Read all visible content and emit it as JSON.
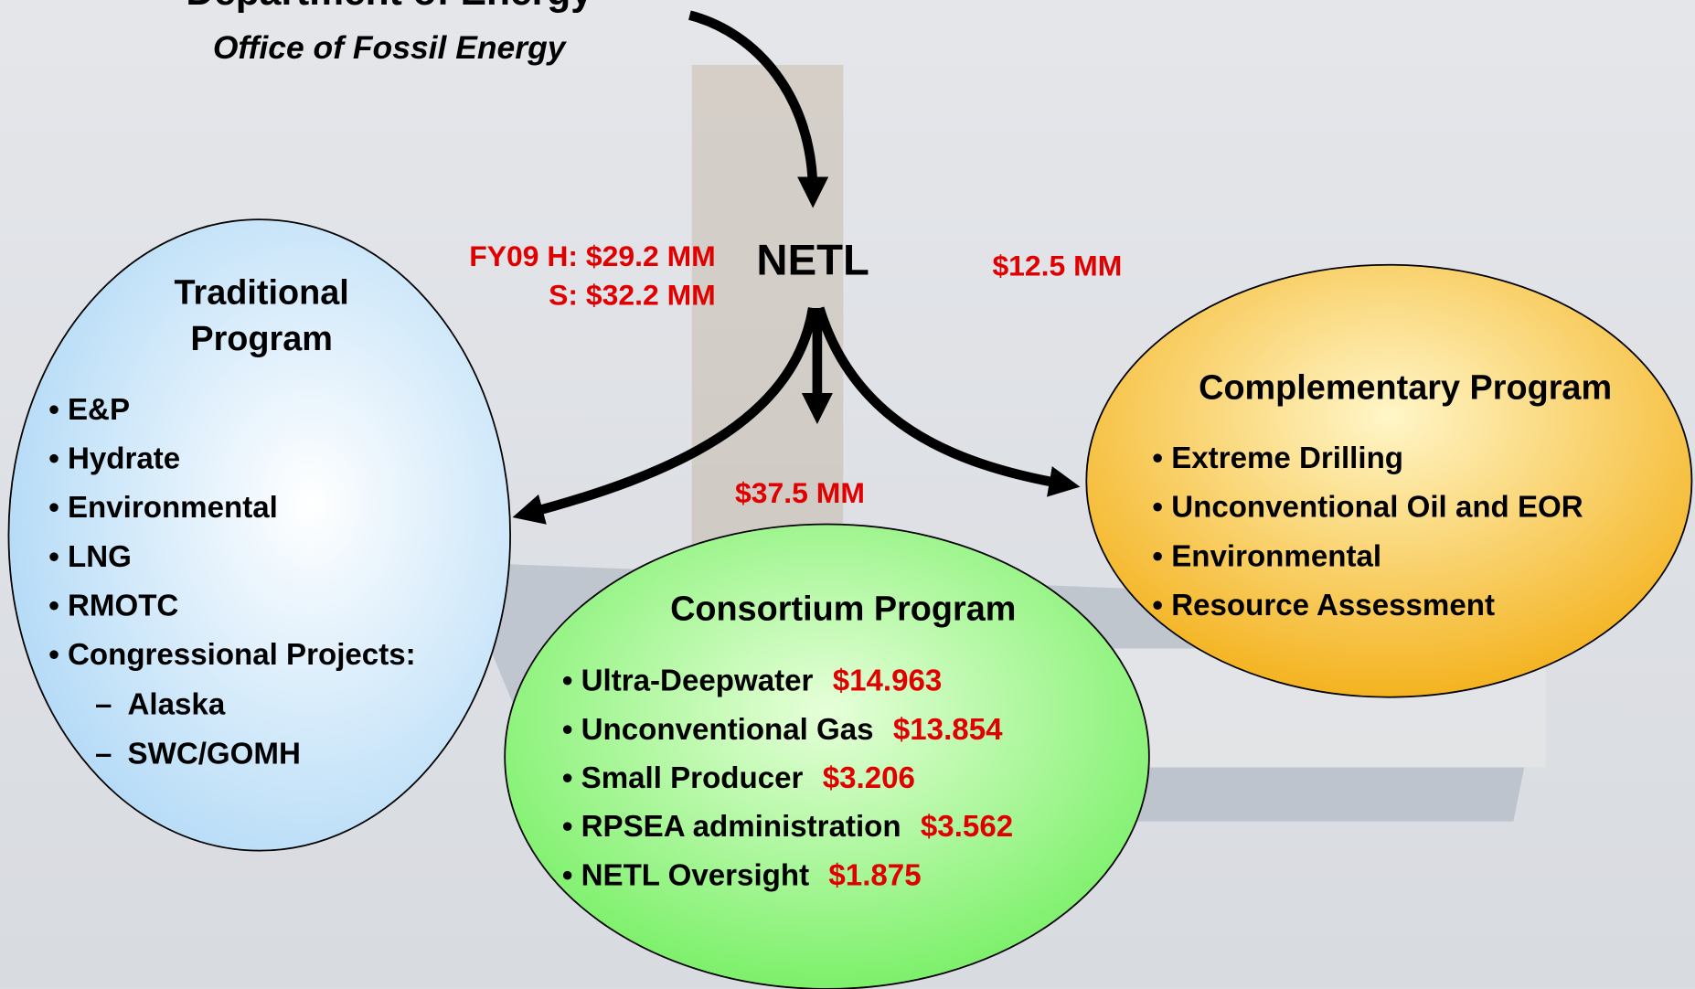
{
  "header": {
    "title": "Department of Energy",
    "subtitle": "Office of Fossil Energy"
  },
  "center": "NETL",
  "funding": {
    "netl_left": [
      "FY09 H: $29.2 MM",
      "S: $32.2 MM"
    ],
    "complementary": "$12.5 MM",
    "consortium": "$37.5 MM"
  },
  "traditional": {
    "title": [
      "Traditional",
      "Program"
    ],
    "items": [
      "• E&P",
      "• Hydrate",
      "• Environmental",
      "• LNG",
      "• RMOTC",
      "• Congressional Projects:"
    ],
    "subitems": [
      {
        "dash": "–",
        "text": "Alaska"
      },
      {
        "dash": "–",
        "text": "SWC/GOMH"
      }
    ]
  },
  "consortium": {
    "title": "Consortium Program",
    "items": [
      {
        "name": "• Ultra-Deepwater",
        "amount": "$14.963"
      },
      {
        "name": "• Unconventional Gas",
        "amount": "$13.854"
      },
      {
        "name": "• Small Producer",
        "amount": "$3.206"
      },
      {
        "name": "• RPSEA administration",
        "amount": "$3.562"
      },
      {
        "name": "• NETL Oversight",
        "amount": "$1.875"
      }
    ]
  },
  "complementary": {
    "title": "Complementary Program",
    "items": [
      "• Extreme Drilling",
      "• Unconventional Oil and EOR",
      "• Environmental",
      "• Resource Assessment"
    ]
  }
}
